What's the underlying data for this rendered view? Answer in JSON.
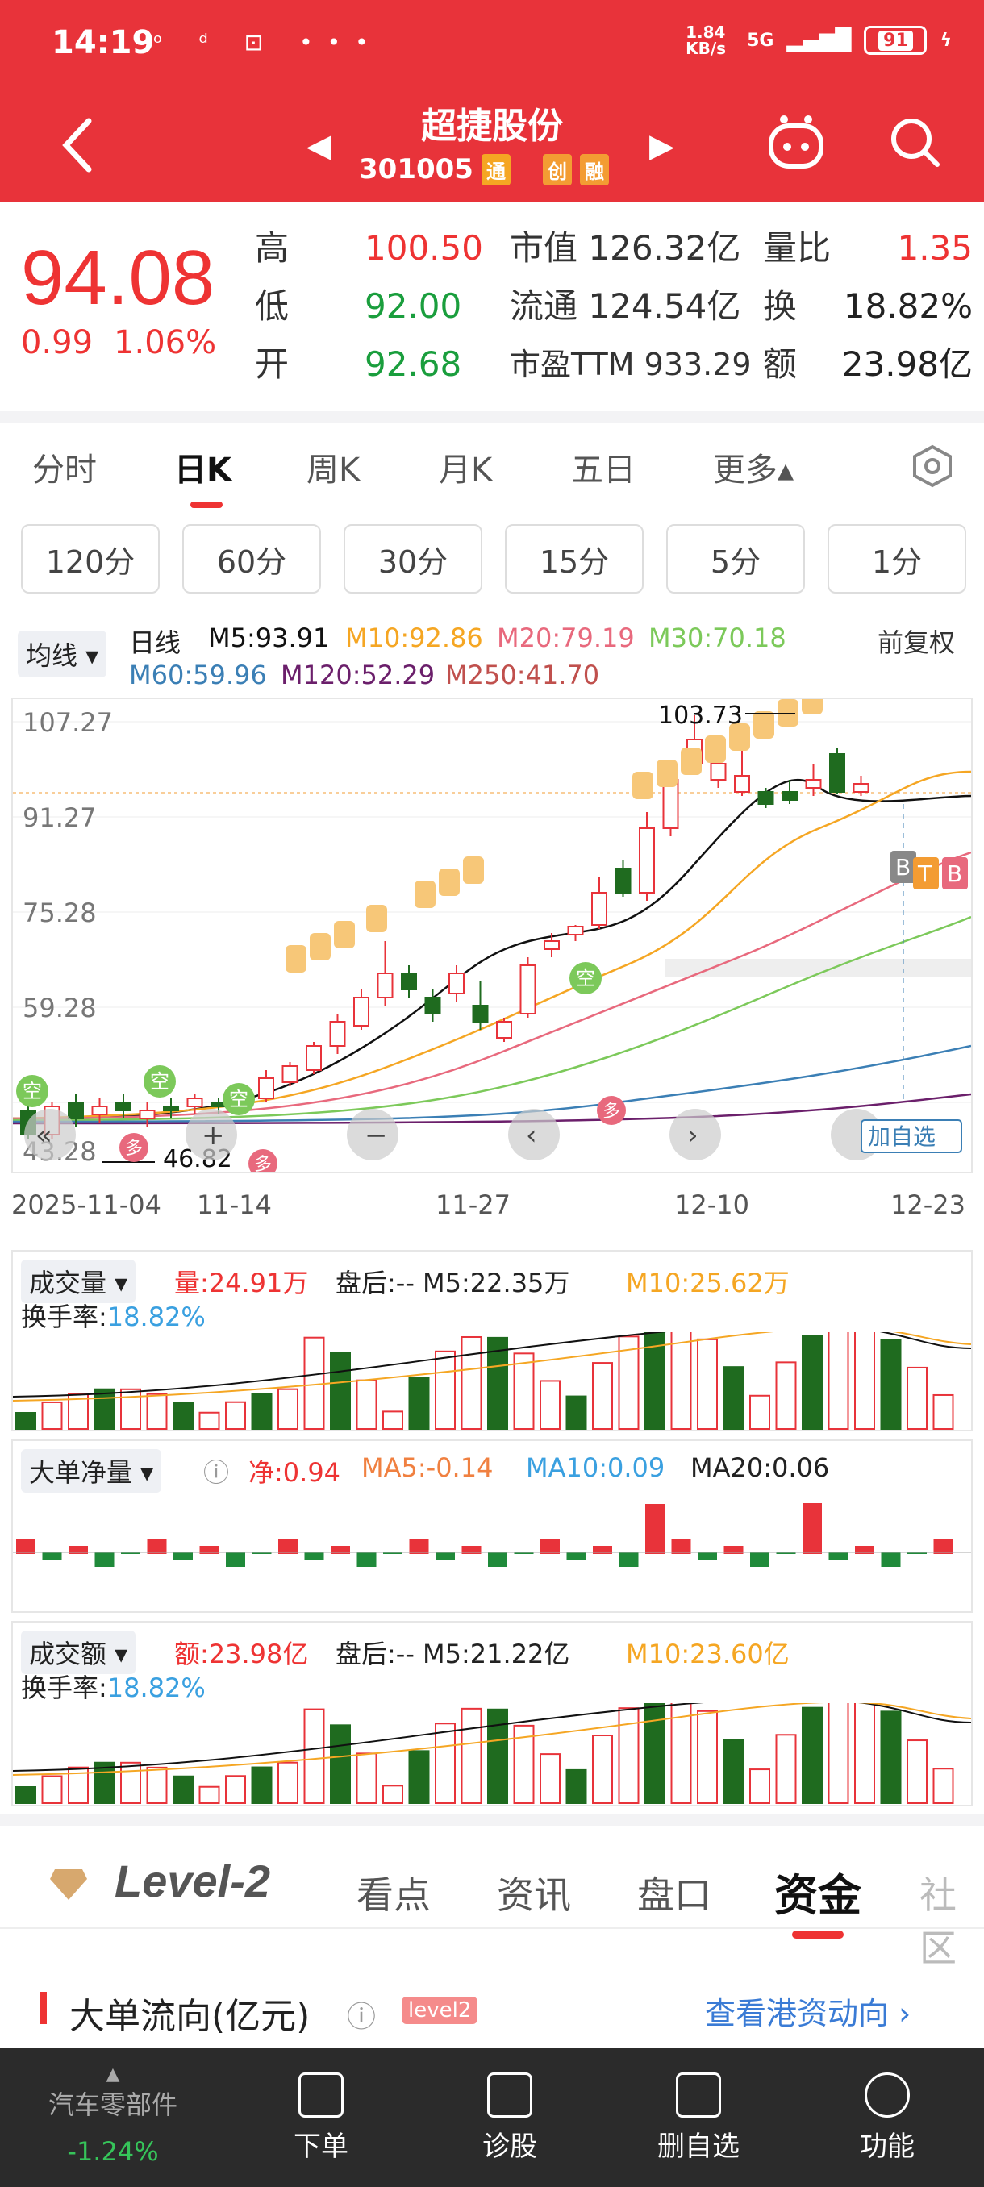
{
  "status": {
    "time": "14:19",
    "left_icons": "ᵒ ᵈ ⊡ •••",
    "net": "1.84 KB/s",
    "signal": "5G",
    "battery": "91"
  },
  "nav": {
    "title": "超捷股份",
    "code": "301005",
    "tags": [
      "通",
      "创",
      "融"
    ]
  },
  "quote": {
    "price": "94.08",
    "change": "0.99",
    "change_pct": "1.06%",
    "labels1": [
      "高",
      "低",
      "开"
    ],
    "values1": [
      "100.50",
      "92.00",
      "92.68"
    ],
    "labels2": [
      "市值",
      "流通",
      "市盈TTM"
    ],
    "values2": [
      "126.32亿",
      "124.54亿",
      "933.29"
    ],
    "labels3": [
      "量比",
      "换",
      "额"
    ],
    "values3": [
      "1.35",
      "18.82%",
      "23.98亿"
    ]
  },
  "tabs": [
    "分时",
    "日K",
    "周K",
    "月K",
    "五日",
    "更多▴"
  ],
  "periods": [
    "120分",
    "60分",
    "30分",
    "15分",
    "5分",
    "1分"
  ],
  "ma": {
    "avg_btn": "均线 ▾",
    "daily": "日线",
    "fq": "前复权",
    "m5": "M5:93.91",
    "m10": "M10:92.86",
    "m20": "M20:79.19",
    "m30": "M30:70.18",
    "m60": "M60:59.96",
    "m120": "M120:52.29",
    "m250": "M250:41.70",
    "colors": {
      "m5": "#111111",
      "m10": "#f5a623",
      "m20": "#e8697d",
      "m30": "#7cc95a",
      "m60": "#3b7fb5",
      "m120": "#6b1f6b",
      "m250": "#c0504d"
    }
  },
  "kchart": {
    "y_ticks": [
      "107.27",
      "91.27",
      "75.28",
      "59.28",
      "43.28"
    ],
    "x_ticks": [
      "2025-11-04",
      "11-14",
      "11-27",
      "12-10",
      "12-23"
    ],
    "high_label": "103.73",
    "low_label": "46.82",
    "signals": {
      "kong": "空",
      "duo": "多",
      "b": "B",
      "t": "T"
    },
    "add_watch": "加自选"
  },
  "vol": {
    "name": "成交量 ▾",
    "amount": "量:24.91万",
    "after": "盘后:-- M5:22.35万",
    "m10": "M10:25.62万",
    "turnover_label": "换手率:",
    "turnover": "18.82%"
  },
  "big": {
    "name": "大单净量 ▾",
    "net": "净:0.94",
    "ma5": "MA5:-0.14",
    "ma10": "MA10:0.09",
    "ma20": "MA20:0.06"
  },
  "amt": {
    "name": "成交额 ▾",
    "amount": "额:23.98亿",
    "after": "盘后:-- M5:21.22亿",
    "m10": "M10:23.60亿",
    "turnover_label": "换手率:",
    "turnover": "18.82%"
  },
  "bottom_tabs": {
    "level2": "Level-2",
    "items": [
      "看点",
      "资讯",
      "盘口",
      "资金",
      "社区"
    ]
  },
  "flow": {
    "title": "大单流向(亿元)",
    "pill": "level2",
    "link": "查看港资动向 ›"
  },
  "bottom_bar": {
    "sector": "汽车零部件",
    "sector_chg": "-1.24%",
    "items": [
      "下单",
      "诊股",
      "删自选",
      "功能"
    ]
  }
}
